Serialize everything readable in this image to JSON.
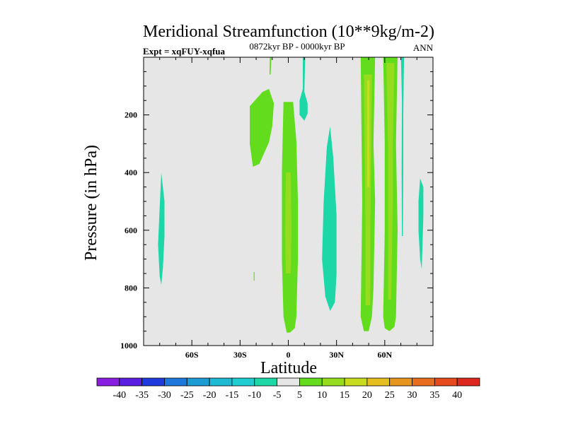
{
  "chart_data": {
    "type": "heatmap",
    "title": "Meridional Streamfunction (10**9kg/m-2)",
    "subtitle_left": "Expt = xqFUY-xqfua",
    "subtitle_center": "0872kyr BP - 0000kyr BP",
    "subtitle_right": "ANN",
    "xlabel": "Latitude",
    "ylabel": "Pressure (in hPa)",
    "xlim": [
      -90,
      90
    ],
    "ylim": [
      1000,
      0
    ],
    "x_ticks": [
      {
        "value": -60,
        "label": "60S"
      },
      {
        "value": -30,
        "label": "30S"
      },
      {
        "value": 0,
        "label": "0"
      },
      {
        "value": 30,
        "label": "30N"
      },
      {
        "value": 60,
        "label": "60N"
      }
    ],
    "y_ticks": [
      {
        "value": 200,
        "label": "200"
      },
      {
        "value": 400,
        "label": "400"
      },
      {
        "value": 600,
        "label": "600"
      },
      {
        "value": 800,
        "label": "800"
      },
      {
        "value": 1000,
        "label": "1000"
      }
    ],
    "background_level": "-5 to 5",
    "colorbar": {
      "labels": [
        "-40",
        "-35",
        "-30",
        "-25",
        "-20",
        "-15",
        "-10",
        "-5",
        "5",
        "10",
        "15",
        "20",
        "25",
        "30",
        "35",
        "40"
      ],
      "colors": [
        "#8a1ee0",
        "#5a1ee0",
        "#1e3cdc",
        "#1e78dc",
        "#1e9bd2",
        "#1eb9d2",
        "#1ecdd2",
        "#1ed7a8",
        "#e6e6e6",
        "#64dc1e",
        "#96dc1e",
        "#c8dc1e",
        "#e6be1e",
        "#e6961e",
        "#e66e1e",
        "#e64b1e",
        "#dc281e"
      ]
    },
    "regions": [
      {
        "name": "sh-polar-negative",
        "level": "-10 to -5",
        "color": "#1ed7a8",
        "polygon": [
          [
            -79,
            400
          ],
          [
            -77,
            500
          ],
          [
            -77,
            620
          ],
          [
            -78,
            730
          ],
          [
            -79,
            790
          ],
          [
            -80,
            760
          ],
          [
            -81,
            650
          ],
          [
            -80,
            520
          ]
        ]
      },
      {
        "name": "sh-upper-positive-cell",
        "level": "5 to 10",
        "color": "#64dc1e",
        "polygon": [
          [
            -16,
            120
          ],
          [
            -12,
            110
          ],
          [
            -9,
            160
          ],
          [
            -10,
            240
          ],
          [
            -12,
            295
          ],
          [
            -18,
            370
          ],
          [
            -22,
            380
          ],
          [
            -24,
            300
          ],
          [
            -24,
            170
          ]
        ]
      },
      {
        "name": "sh-top-filament",
        "level": "5 to 10",
        "color": "#64dc1e",
        "polygon": [
          [
            -11.5,
            0
          ],
          [
            -10.5,
            0
          ],
          [
            -11,
            60
          ],
          [
            -11.7,
            60
          ]
        ]
      },
      {
        "name": "sh-tiny-spot",
        "level": "5 to 10",
        "color": "#64dc1e",
        "polygon": [
          [
            -21.5,
            745
          ],
          [
            -21,
            745
          ],
          [
            -21,
            775
          ],
          [
            -21.5,
            775
          ]
        ]
      },
      {
        "name": "equatorial-cell",
        "level": "5 to 10",
        "color": "#64dc1e",
        "polygon": [
          [
            -3,
            155
          ],
          [
            3,
            155
          ],
          [
            5,
            290
          ],
          [
            6,
            500
          ],
          [
            6,
            700
          ],
          [
            5,
            900
          ],
          [
            4,
            940
          ],
          [
            1,
            955
          ],
          [
            -1,
            955
          ],
          [
            -3,
            900
          ],
          [
            -4,
            700
          ],
          [
            -4,
            400
          ]
        ]
      },
      {
        "name": "equatorial-core",
        "level": "10 to 15",
        "color": "#96dc1e",
        "polygon": [
          [
            -1.5,
            400
          ],
          [
            1.5,
            400
          ],
          [
            2,
            600
          ],
          [
            1.5,
            750
          ],
          [
            -1.5,
            750
          ],
          [
            -2,
            600
          ]
        ]
      },
      {
        "name": "equatorial-upper-negative",
        "level": "-10 to -5",
        "color": "#1ed7a8",
        "polygon": [
          [
            9,
            0
          ],
          [
            10.5,
            0
          ],
          [
            10,
            120
          ],
          [
            12,
            160
          ],
          [
            12,
            195
          ],
          [
            10,
            220
          ],
          [
            7,
            200
          ],
          [
            7,
            150
          ],
          [
            9,
            110
          ]
        ]
      },
      {
        "name": "nh-subtropical-negative",
        "level": "-10 to -5",
        "color": "#1ed7a8",
        "polygon": [
          [
            24,
            310
          ],
          [
            26,
            240
          ],
          [
            28,
            350
          ],
          [
            30,
            550
          ],
          [
            30,
            750
          ],
          [
            29,
            850
          ],
          [
            26,
            880
          ],
          [
            23,
            830
          ],
          [
            21,
            700
          ],
          [
            22,
            500
          ]
        ]
      },
      {
        "name": "nh-positive-cell-45N",
        "level": "5 to 10",
        "color": "#64dc1e",
        "polygon": [
          [
            45,
            -5
          ],
          [
            54,
            -5
          ],
          [
            53,
            300
          ],
          [
            54,
            500
          ],
          [
            53,
            800
          ],
          [
            52,
            900
          ],
          [
            50,
            950
          ],
          [
            47,
            950
          ],
          [
            45,
            900
          ],
          [
            46,
            500
          ]
        ]
      },
      {
        "name": "nh-core-45N",
        "level": "10 to 15",
        "color": "#96dc1e",
        "polygon": [
          [
            47,
            60
          ],
          [
            52,
            60
          ],
          [
            51,
            600
          ],
          [
            51,
            860
          ],
          [
            48,
            860
          ],
          [
            48,
            600
          ]
        ]
      },
      {
        "name": "nh-hot-45N",
        "level": "15 to 20",
        "color": "#c8dc1e",
        "polygon": [
          [
            49,
            80
          ],
          [
            50.5,
            80
          ],
          [
            50.5,
            450
          ],
          [
            49,
            450
          ]
        ]
      },
      {
        "name": "nh-positive-cell-62N",
        "level": "5 to 10",
        "color": "#64dc1e",
        "polygon": [
          [
            59,
            -5
          ],
          [
            68,
            -5
          ],
          [
            67,
            300
          ],
          [
            68,
            600
          ],
          [
            67,
            900
          ],
          [
            66,
            935
          ],
          [
            63,
            950
          ],
          [
            60,
            940
          ],
          [
            59,
            900
          ],
          [
            60,
            600
          ],
          [
            60,
            300
          ]
        ]
      },
      {
        "name": "nh-core-62N",
        "level": "10 to 15",
        "color": "#96dc1e",
        "polygon": [
          [
            61,
            20
          ],
          [
            66,
            20
          ],
          [
            65,
            300
          ],
          [
            65,
            500
          ],
          [
            64,
            840
          ],
          [
            62,
            840
          ],
          [
            62,
            500
          ],
          [
            62,
            300
          ]
        ]
      },
      {
        "name": "nh-polar-negative-filament",
        "level": "-10 to -5",
        "color": "#1ed7a8",
        "polygon": [
          [
            70,
            -5
          ],
          [
            72,
            -5
          ],
          [
            71.5,
            200
          ],
          [
            71.5,
            400
          ],
          [
            71.3,
            620
          ],
          [
            70.7,
            620
          ],
          [
            70.5,
            400
          ],
          [
            70.7,
            150
          ]
        ]
      },
      {
        "name": "nh-arctic-negative",
        "level": "-10 to -5",
        "color": "#1ed7a8",
        "polygon": [
          [
            82,
            420
          ],
          [
            84,
            450
          ],
          [
            84,
            550
          ],
          [
            83.5,
            650
          ],
          [
            83,
            735
          ],
          [
            82,
            700
          ],
          [
            81,
            600
          ],
          [
            81,
            500
          ]
        ]
      }
    ]
  }
}
